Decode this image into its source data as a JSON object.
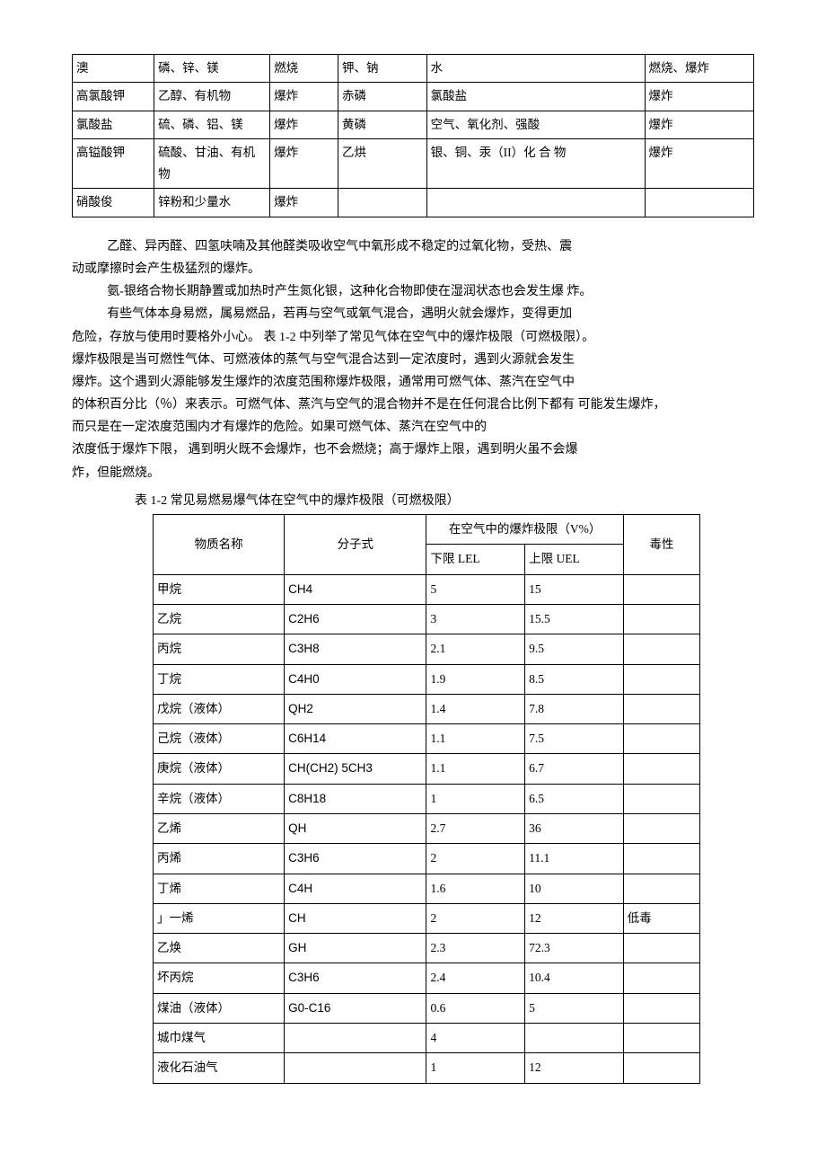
{
  "table1": {
    "rows": [
      [
        "澳",
        "磷、锌、镁",
        "燃烧",
        "钾、钠",
        "水",
        "燃烧、爆炸"
      ],
      [
        "高氯酸钾",
        "乙醇、有机物",
        "爆炸",
        "赤磷",
        "氯酸盐",
        "爆炸"
      ],
      [
        "氯酸盐",
        "硫、磷、铝、镁",
        "爆炸",
        "黄磷",
        "空气、氧化剂、强酸",
        "爆炸"
      ],
      [
        "高镒酸钾",
        "硫酸、甘油、有机物",
        "爆炸",
        "乙烘",
        "银、铜、汞（II）化 合 物",
        "爆炸"
      ],
      [
        "硝酸俊",
        "锌粉和少量水",
        "爆炸",
        "",
        "",
        ""
      ]
    ]
  },
  "paragraphs": {
    "p1a": "乙醛、异丙醛、四氢呋喃及其他醛类吸收空气中氧形成不稳定的过氧化物，受热、震",
    "p1b": "动或摩擦时会产生极猛烈的爆炸。",
    "p2": "氨-银络合物长期静置或加热时产生氮化银，这种化合物即使在湿润状态也会发生爆 炸。",
    "p3a": "有些气体本身易燃，属易燃品，若再与空气或氧气混合，遇明火就会爆炸，变得更加",
    "p3b": "危险，存放与使用时要格外小心。 表 1-2 中列举了常见气体在空气中的爆炸极限（可燃极限）。",
    "p3c": "爆炸极限是当可燃性气体、可燃液体的蒸气与空气混合达到一定浓度时，遇到火源就会发生",
    "p3d": "爆炸。这个遇到火源能够发生爆炸的浓度范围称爆炸极限，通常用可燃气体、蒸汽在空气中",
    "p3e": "的体积百分比（％）来表示。可燃气体、蒸汽与空气的混合物并不是在任何混合比例下都有 可能发生爆炸，",
    "p3f": "而只是在一定浓度范围内才有爆炸的危险。如果可燃气体、蒸汽在空气中的",
    "p3g": "浓度低于爆炸下限， 遇到明火既不会爆炸，也不会燃烧；高于爆炸上限，遇到明火虽不会爆",
    "p3h": "炸，但能燃烧。"
  },
  "caption": "表 1-2 常见易燃易爆气体在空气中的爆炸极限（可燃极限）",
  "table2": {
    "headers": {
      "name": "物质名称",
      "formula": "分子式",
      "limits": "在空气中的爆炸极限（V%）",
      "lower": "下限 LEL",
      "upper": "上限 UEL",
      "toxic": "毒性"
    },
    "rows": [
      {
        "n": "甲烷",
        "f": "CH4",
        "l": "5",
        "u": "15",
        "t": ""
      },
      {
        "n": "乙烷",
        "f": "C2H6",
        "l": "3",
        "u": "15.5",
        "t": ""
      },
      {
        "n": "丙烷",
        "f": "C3H8",
        "l": "2.1",
        "u": "9.5",
        "t": ""
      },
      {
        "n": "丁烷",
        "f": "C4H0",
        "l": "1.9",
        "u": "8.5",
        "t": ""
      },
      {
        "n": "戊烷（液体）",
        "f": "QH2",
        "l": "1.4",
        "u": "7.8",
        "t": ""
      },
      {
        "n": "己烷（液体）",
        "f": "C6H14",
        "l": "1.1",
        "u": "7.5",
        "t": ""
      },
      {
        "n": "庚烷（液体）",
        "f": "CH(CH2) 5CH3",
        "l": "1.1",
        "u": "6.7",
        "t": ""
      },
      {
        "n": "辛烷（液体）",
        "f": "C8H18",
        "l": "1",
        "u": "6.5",
        "t": ""
      },
      {
        "n": "乙烯",
        "f": "QH",
        "l": "2.7",
        "u": "36",
        "t": ""
      },
      {
        "n": "丙烯",
        "f": "C3H6",
        "l": "2",
        "u": "11.1",
        "t": ""
      },
      {
        "n": "丁烯",
        "f": "C4H",
        "l": "1.6",
        "u": "10",
        "t": ""
      },
      {
        "n": "」一烯",
        "f": "CH",
        "l": "2",
        "u": "12",
        "t": "低毒"
      },
      {
        "n": "乙焕",
        "f": "GH",
        "l": "2.3",
        "u": "72.3",
        "t": ""
      },
      {
        "n": "坏丙烷",
        "f": "C3H6",
        "l": "2.4",
        "u": "10.4",
        "t": ""
      },
      {
        "n": "煤油（液体）",
        "f": "G0-C16",
        "l": "0.6",
        "u": "5",
        "t": ""
      },
      {
        "n": "城巾煤气",
        "f": "",
        "l": "4",
        "u": "",
        "t": ""
      },
      {
        "n": "液化石油气",
        "f": "",
        "l": "1",
        "u": "12",
        "t": ""
      }
    ]
  }
}
